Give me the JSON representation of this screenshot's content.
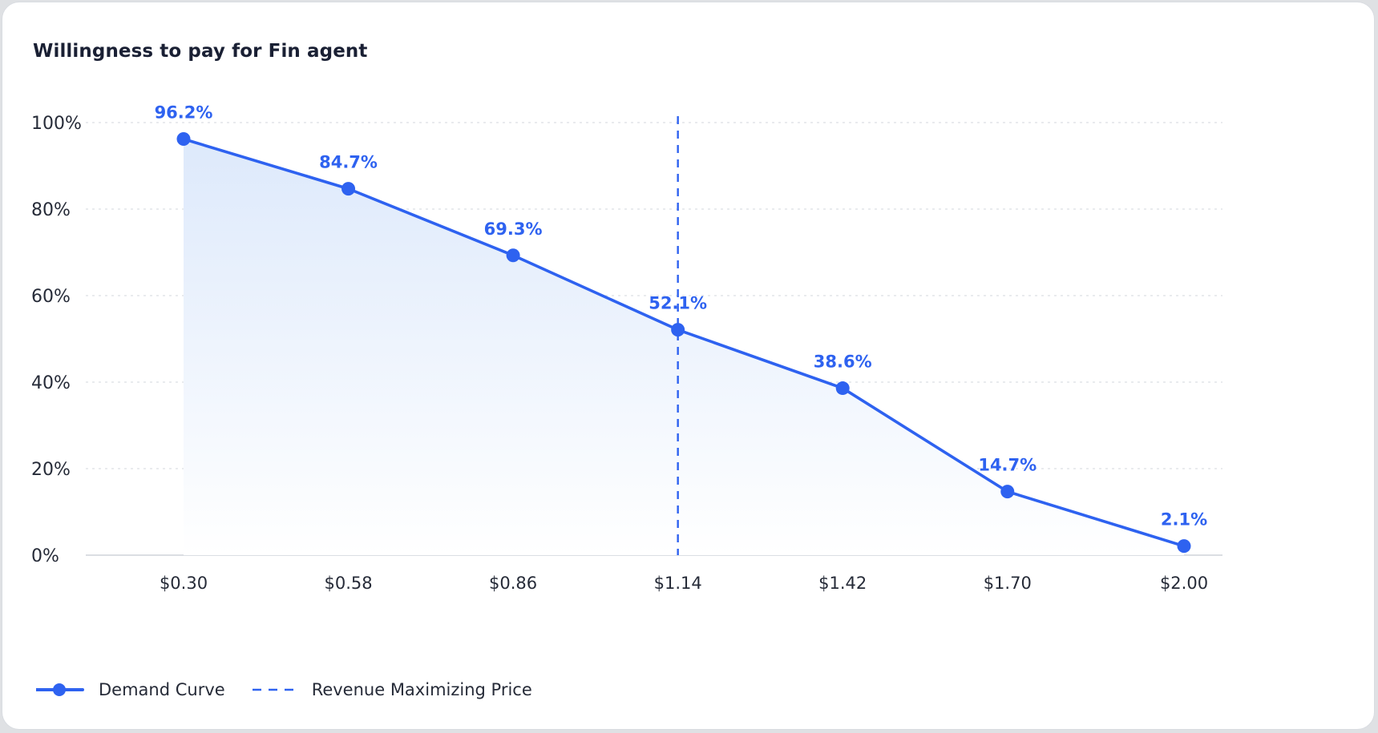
{
  "colors": {
    "accent": "#2e62f0",
    "text": "#262b38",
    "title": "#1a2034",
    "grid": "#dcdfe4",
    "area_top": "#dde9fb",
    "area_bottom": "#ffffff"
  },
  "chart_data": {
    "type": "line",
    "title": "Willingness to pay for Fin agent",
    "xlabel": "",
    "ylabel": "",
    "categories": [
      "$0.30",
      "$0.58",
      "$0.86",
      "$1.14",
      "$1.42",
      "$1.70",
      "$2.00"
    ],
    "x": [
      0.3,
      0.58,
      0.86,
      1.14,
      1.42,
      1.7,
      2.0
    ],
    "xlim": [
      0.3,
      2.0
    ],
    "ylim": [
      0,
      100
    ],
    "y_ticks": [
      "0%",
      "20%",
      "40%",
      "60%",
      "80%",
      "100%"
    ],
    "y_tick_values": [
      0,
      20,
      40,
      60,
      80,
      100
    ],
    "grid": "horizontal dotted",
    "area_fill": true,
    "series": [
      {
        "name": "Demand Curve",
        "values": [
          96.2,
          84.7,
          69.3,
          52.1,
          38.6,
          14.7,
          2.1
        ],
        "labels": [
          "96.2%",
          "84.7%",
          "69.3%",
          "52.1%",
          "38.6%",
          "14.7%",
          "2.1%"
        ]
      }
    ],
    "reference_line": {
      "name": "Revenue Maximizing Price",
      "x": 1.14,
      "style": "dashed"
    },
    "legend": {
      "position": "bottom-left",
      "items": [
        {
          "label": "Demand Curve",
          "style": "line-marker"
        },
        {
          "label": "Revenue Maximizing Price",
          "style": "dashed"
        }
      ]
    }
  }
}
